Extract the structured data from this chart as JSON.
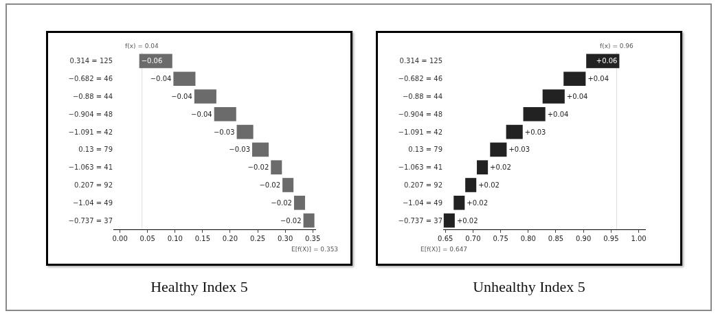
{
  "chart_data": [
    {
      "type": "bar",
      "orientation": "horizontal",
      "title": "Healthy Index 5",
      "color": "#6b6b6b",
      "categories": [
        "0.314 = 125",
        "−0.682 = 46",
        "−0.88 = 44",
        "−0.904 = 48",
        "−1.091 = 42",
        "0.13 = 79",
        "−1.063 = 41",
        "0.207 = 92",
        "−1.04 = 49",
        "−0.737 = 37"
      ],
      "values": [
        -0.06,
        -0.04,
        -0.04,
        -0.04,
        -0.03,
        -0.03,
        -0.02,
        -0.02,
        -0.02,
        -0.02
      ],
      "base": [
        0.095,
        0.137,
        0.175,
        0.211,
        0.242,
        0.27,
        0.294,
        0.315,
        0.336,
        0.353
      ],
      "value_labels": [
        "−0.06",
        "−0.04",
        "−0.04",
        "−0.04",
        "−0.03",
        "−0.03",
        "−0.02",
        "−0.02",
        "−0.02",
        "−0.02"
      ],
      "xlim": [
        -0.012,
        0.356
      ],
      "xticks": [
        {
          "value": 0,
          "label": "0.00"
        },
        0.05,
        {
          "value": 0.1,
          "label": "0.10"
        },
        0.15,
        {
          "value": 0.2,
          "label": "0.20"
        },
        0.25,
        {
          "value": 0.3,
          "label": "0.30"
        },
        0.35
      ],
      "ref_lines": [
        {
          "axis": "x",
          "value": 0.04,
          "label": "f(x) = 0.04",
          "color": "#dddddd"
        }
      ],
      "annotations": [
        "E[f(X)] = 0.353"
      ],
      "grid": false
    },
    {
      "type": "bar",
      "orientation": "horizontal",
      "title": "Unhealthy Index 5",
      "color": "#222222",
      "categories": [
        "0.314 = 125",
        "−0.682 = 46",
        "−0.88 = 44",
        "−0.904 = 48",
        "−1.091 = 42",
        "0.13 = 79",
        "−1.063 = 41",
        "0.207 = 92",
        "−1.04 = 49",
        "−0.737 = 37"
      ],
      "values": [
        0.06,
        0.04,
        0.04,
        0.04,
        0.03,
        0.03,
        0.02,
        0.02,
        0.02,
        0.02
      ],
      "base": [
        0.905,
        0.864,
        0.826,
        0.791,
        0.76,
        0.731,
        0.707,
        0.686,
        0.665,
        0.647
      ],
      "value_labels": [
        "+0.06",
        "+0.04",
        "+0.04",
        "+0.04",
        "+0.03",
        "+0.03",
        "+0.02",
        "+0.02",
        "+0.02",
        "+0.02"
      ],
      "xlim": [
        0.646,
        1.013
      ],
      "xticks": [
        0.65,
        {
          "value": 0.7,
          "label": "0.70"
        },
        0.75,
        {
          "value": 0.8,
          "label": "0.80"
        },
        0.85,
        {
          "value": 0.9,
          "label": "0.90"
        },
        0.95,
        {
          "value": 1,
          "label": "1.00"
        }
      ],
      "ref_lines": [
        {
          "axis": "x",
          "value": 0.96,
          "label": "f(x) = 0.96",
          "color": "#dddddd"
        }
      ],
      "annotations": [
        "E[f(X)] = 0.647"
      ],
      "grid": false
    }
  ]
}
